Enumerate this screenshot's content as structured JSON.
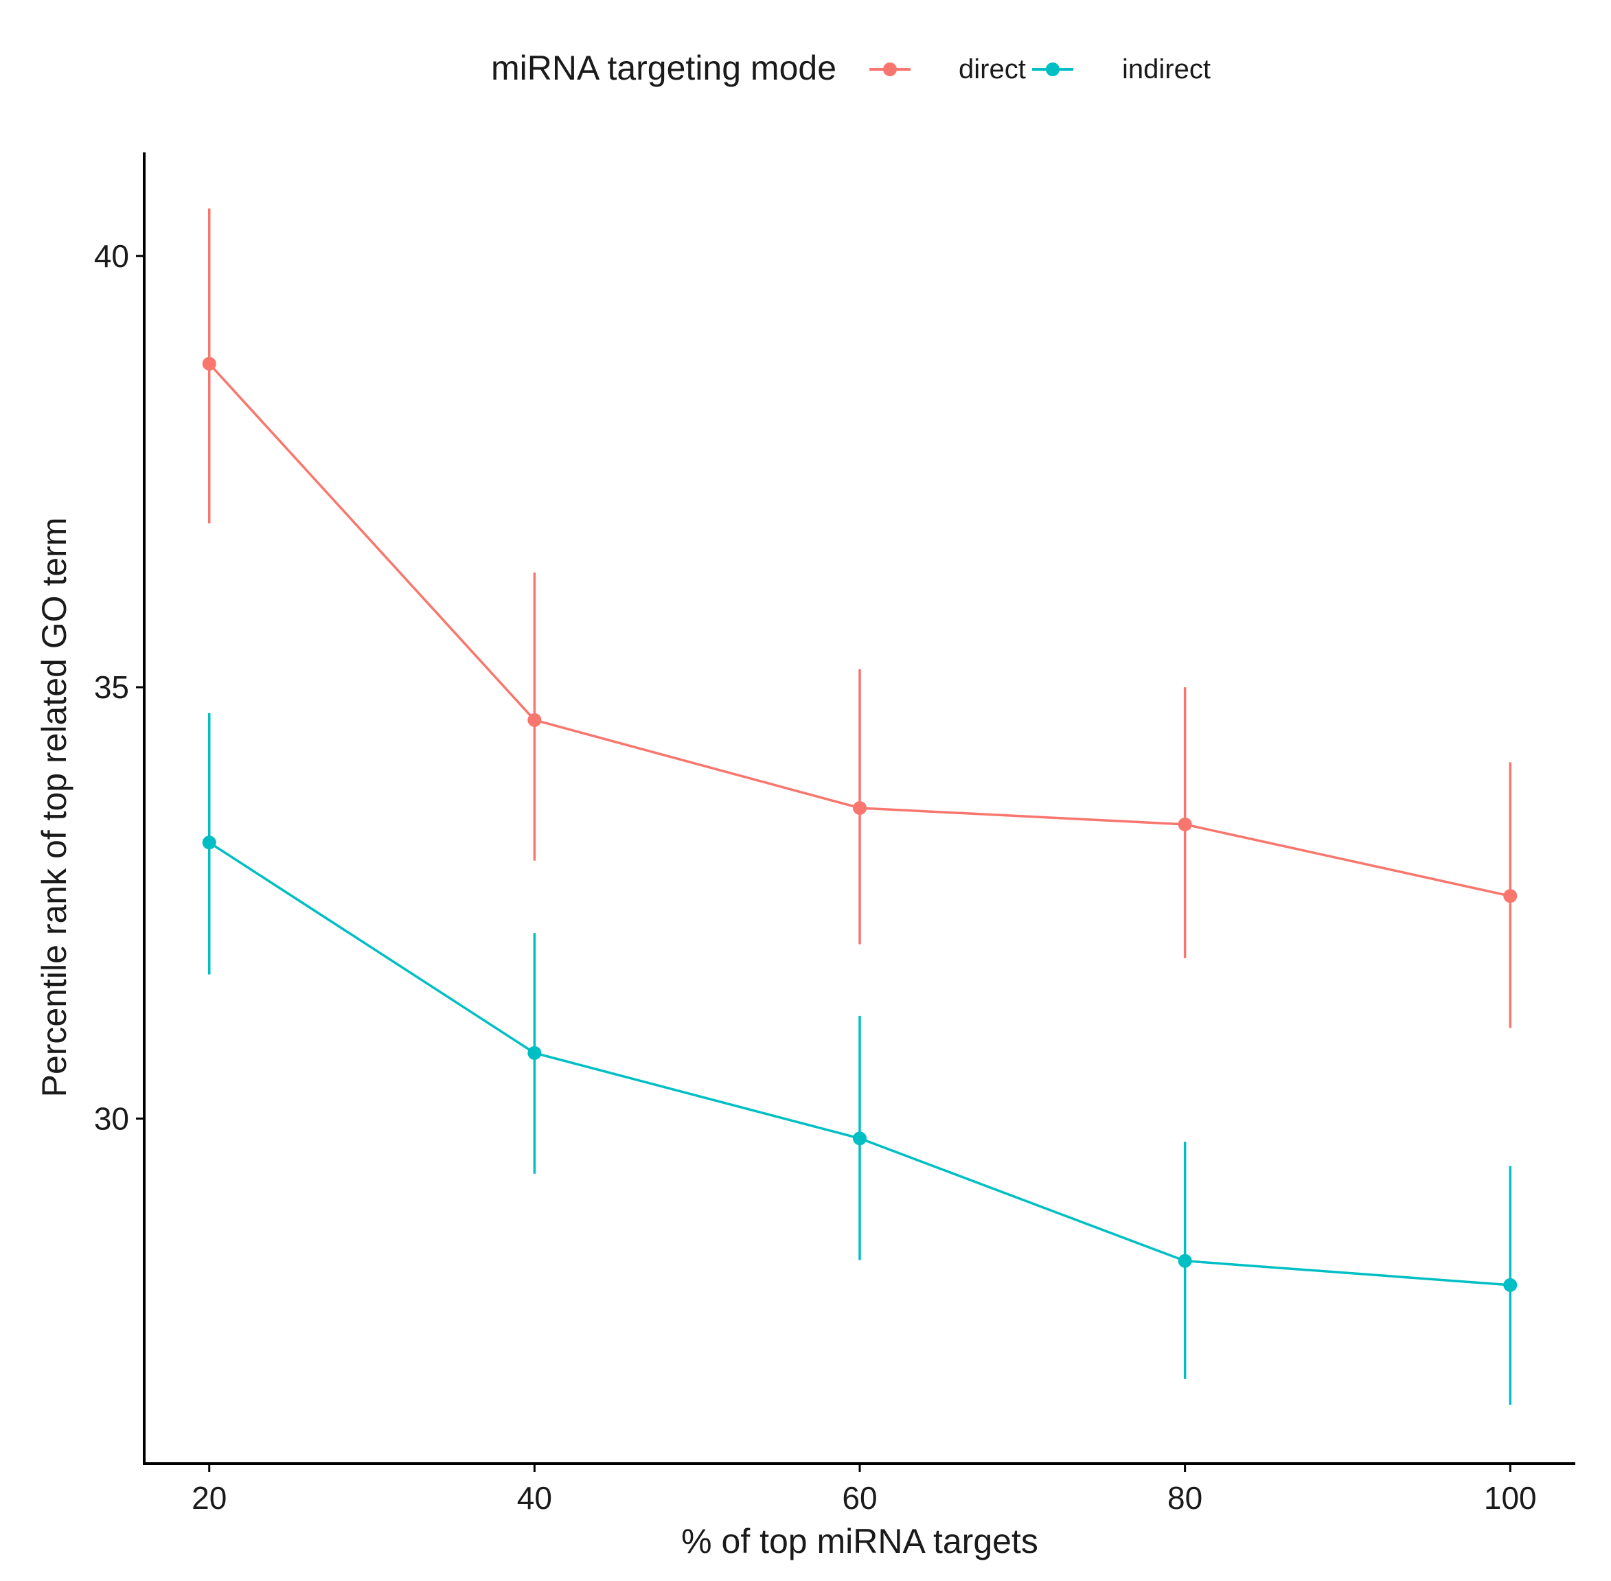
{
  "chart_data": {
    "type": "line",
    "title": "",
    "xlabel": "% of top miRNA targets",
    "ylabel": "Percentile rank of top related GO term",
    "x": [
      20,
      40,
      60,
      80,
      100
    ],
    "xlim": [
      16,
      104
    ],
    "ylim": [
      26,
      41.2
    ],
    "xticks": [
      20,
      40,
      60,
      80,
      100
    ],
    "yticks": [
      30,
      35,
      40
    ],
    "xtick_labels": [
      "20",
      "40",
      "60",
      "80",
      "100"
    ],
    "ytick_labels": [
      "30",
      "35",
      "40"
    ],
    "grid": false,
    "error_bars": true,
    "legend": {
      "title": "miRNA targeting mode",
      "position": "top"
    },
    "series": [
      {
        "name": "direct",
        "color": "#F8766D",
        "values": [
          38.75,
          34.62,
          33.6,
          33.41,
          32.58
        ],
        "lower": [
          36.9,
          32.99,
          32.02,
          31.86,
          31.05
        ],
        "upper": [
          40.55,
          36.33,
          35.21,
          35.0,
          34.13
        ]
      },
      {
        "name": "indirect",
        "color": "#00BFC4",
        "values": [
          33.2,
          30.76,
          29.77,
          28.35,
          28.07
        ],
        "lower": [
          31.67,
          29.36,
          28.36,
          26.98,
          26.68
        ],
        "upper": [
          34.7,
          32.15,
          31.19,
          29.73,
          29.45
        ]
      }
    ]
  }
}
